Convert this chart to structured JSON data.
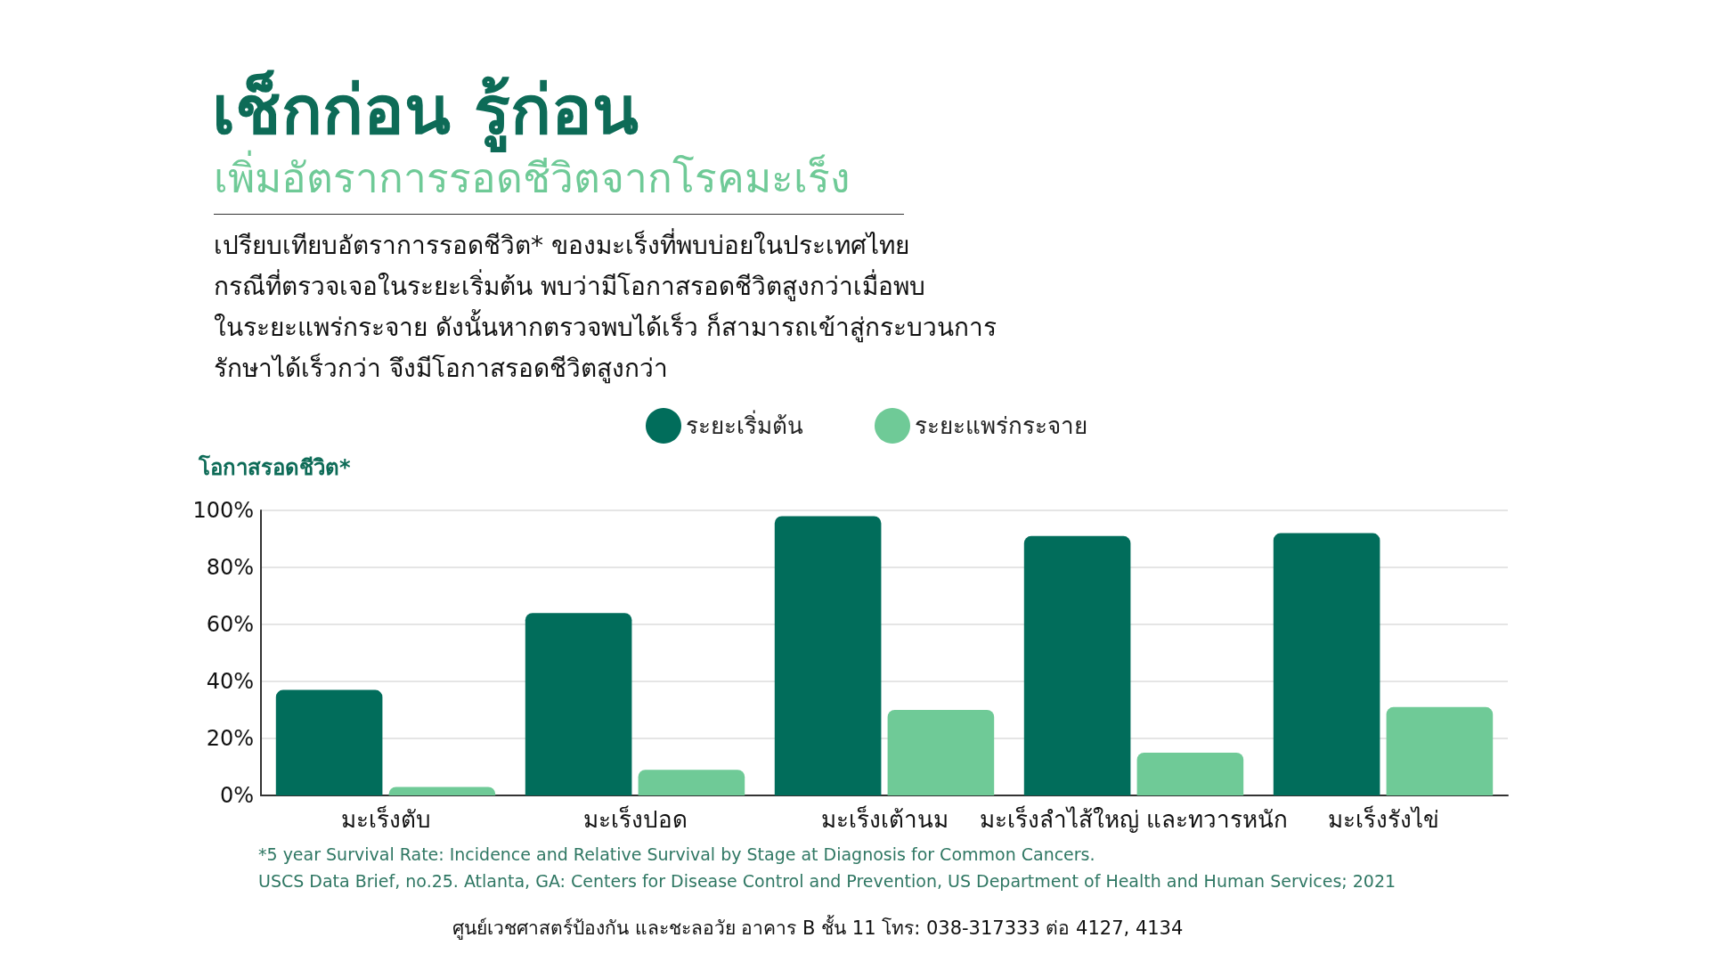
{
  "chart_data": {
    "type": "bar",
    "title": "เช็กก่อน รู้ก่อน",
    "subtitle": "เพิ่มอัตราการรอดชีวิตจากโรคมะเร็ง",
    "ylabel": "โอกาสรอดชีวิต*",
    "categories": [
      "มะเร็งตับ",
      "มะเร็งปอด",
      "มะเร็งเต้านม",
      "มะเร็งลำไส้ใหญ่ และทวารหนัก",
      "มะเร็งรังไข่"
    ],
    "series": [
      {
        "name": "ระยะเริ่มต้น",
        "color": "#016d5b",
        "values": [
          37,
          64,
          98,
          91,
          92
        ]
      },
      {
        "name": "ระยะแพร่กระจาย",
        "color": "#6fca97",
        "values": [
          3,
          9,
          30,
          15,
          31
        ]
      }
    ],
    "ylim": [
      0,
      100
    ],
    "yticks": [
      {
        "value": 0,
        "label": "0%"
      },
      {
        "value": 20,
        "label": "20%"
      },
      {
        "value": 40,
        "label": "40%"
      },
      {
        "value": 60,
        "label": "60%"
      },
      {
        "value": 80,
        "label": "80%"
      },
      {
        "value": 100,
        "label": "100%"
      }
    ],
    "grid": "y",
    "legend": "top",
    "annotations": [
      "เปรียบเทียบอัตราการรอดชีวิต* ของมะเร็งที่พบบ่อยในประเทศไทย\nกรณีที่ตรวจเจอในระยะเริ่มต้น พบว่ามีโอกาสรอดชีวิตสูงกว่าเมื่อพบ\nในระยะแพร่กระจาย ดังนั้นหากตรวจพบได้เร็ว ก็สามารถเข้าสู่กระบวนการ\nรักษาได้เร็วกว่า จึงมีโอกาสรอดชีวิตสูงกว่า",
      "*5 year Survival Rate: Incidence and Relative Survival by Stage at Diagnosis for Common Cancers.",
      "USCS Data Brief, no.25. Atlanta, GA: Centers for Disease Control and Prevention, US Department of Health and Human Services; 2021",
      "ศูนย์เวชศาสตร์ป้องกัน และชะลอวัย อาคาร B ชั้น 11 โทร: 038-317333 ต่อ 4127, 4134"
    ]
  }
}
